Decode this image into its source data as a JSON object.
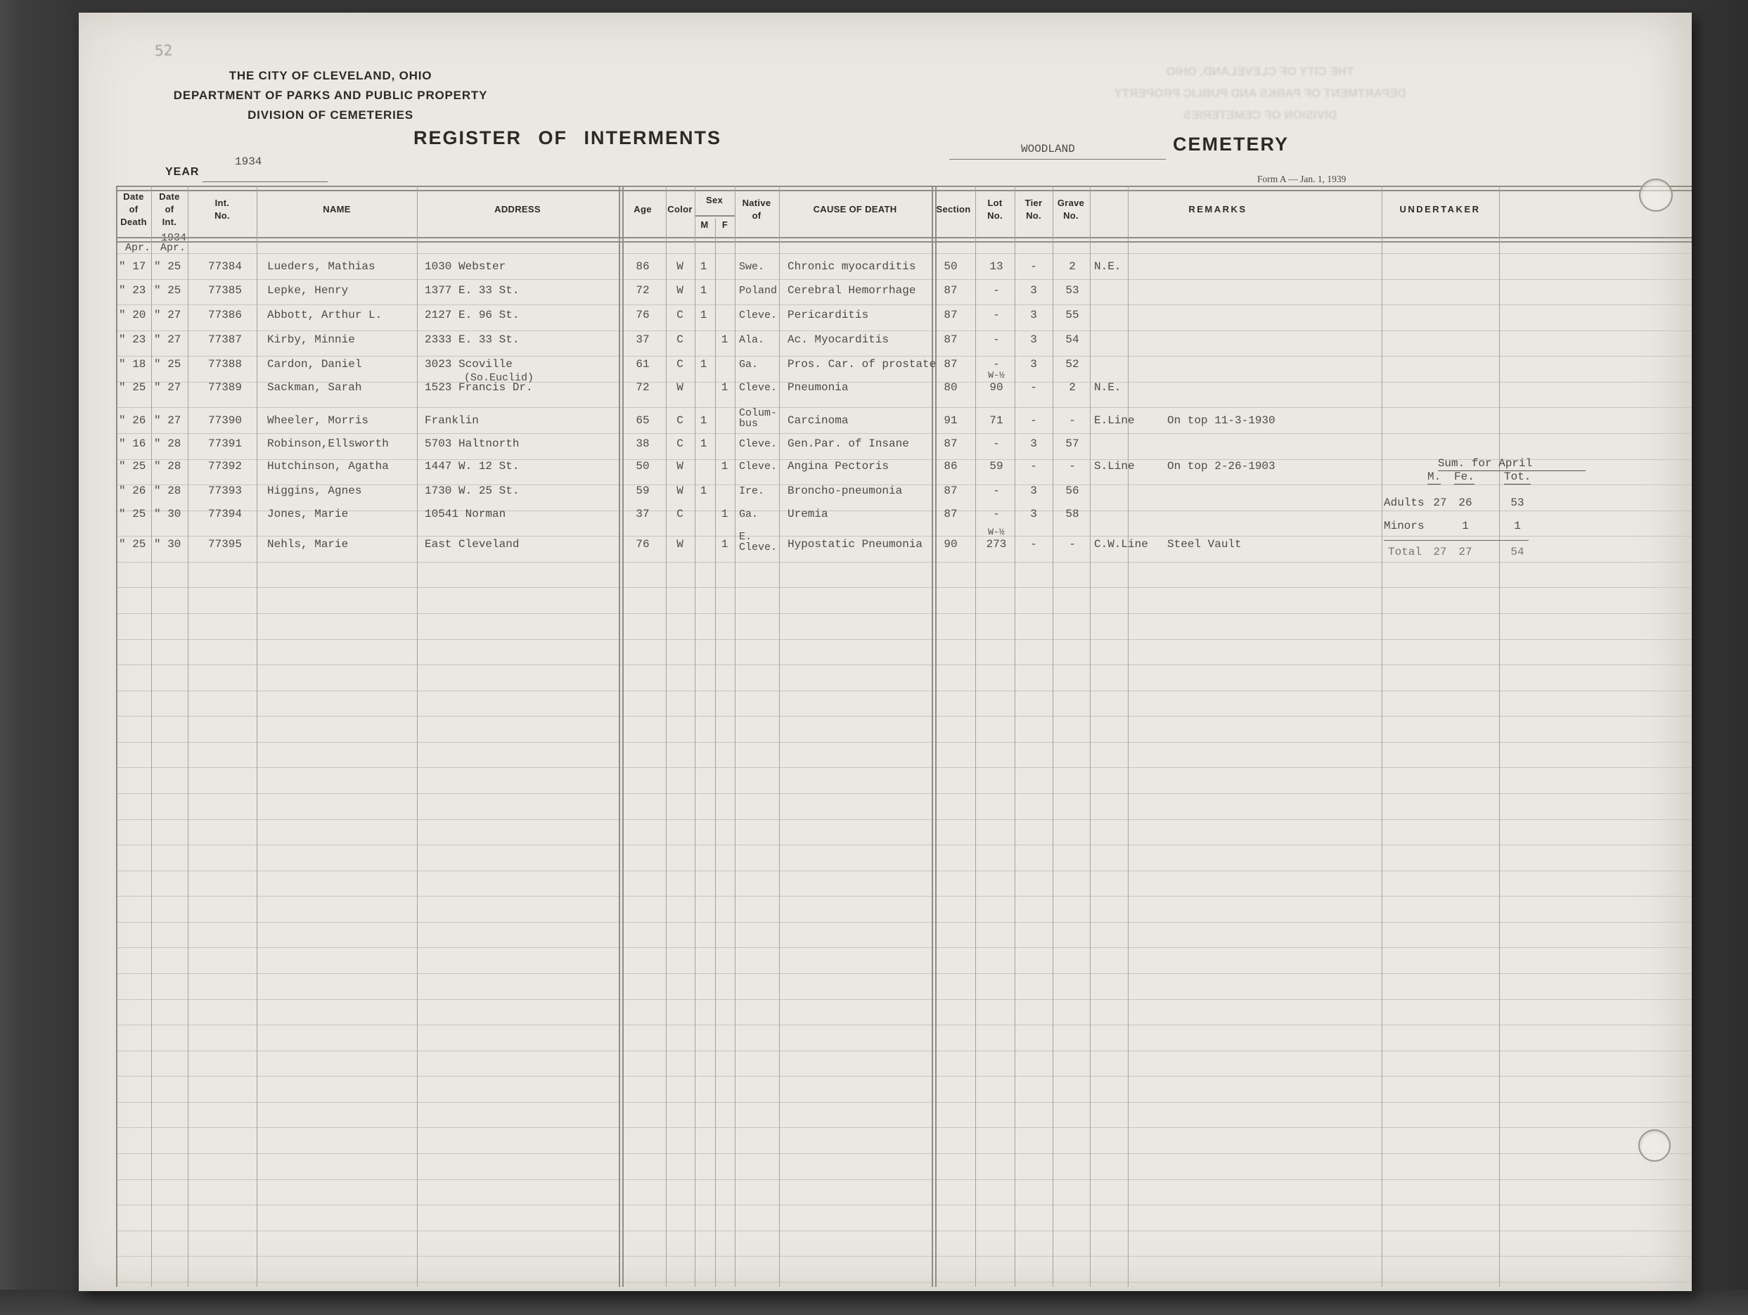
{
  "page_number": "52",
  "colors": {
    "paper": "#eae8e2",
    "background": "#363636",
    "typed_ink": "#4e4a44",
    "printed_ink": "#2c2a26"
  },
  "header": {
    "org_line1": "THE CITY OF CLEVELAND, OHIO",
    "org_line2": "DEPARTMENT OF PARKS AND PUBLIC PROPERTY",
    "org_line3": "DIVISION OF CEMETERIES",
    "title": "REGISTER OF INTERMENTS",
    "year_label": "YEAR",
    "year_value": "1934",
    "cemetery_name": "WOODLAND",
    "cemetery_label": "CEMETERY",
    "form_note": "Form A — Jan. 1, 1939"
  },
  "ghost_lines": [
    "THE CITY OF CLEVELAND, OHIO",
    "DEPARTMENT OF PARKS AND PUBLIC PROPERTY",
    "DIVISION OF CEMETERIES"
  ],
  "table": {
    "columns": [
      {
        "id": "date-of-death",
        "lines": [
          "Date",
          "of",
          "Death"
        ]
      },
      {
        "id": "date-of-int",
        "lines": [
          "Date",
          "of",
          "Int."
        ]
      },
      {
        "id": "int-no",
        "lines": [
          "Int.",
          "No."
        ]
      },
      {
        "id": "name",
        "lines": [
          "NAME"
        ]
      },
      {
        "id": "address",
        "lines": [
          "ADDRESS"
        ]
      },
      {
        "id": "age",
        "lines": [
          "Age"
        ]
      },
      {
        "id": "color",
        "lines": [
          "Color"
        ]
      },
      {
        "id": "sex",
        "lines": [
          "Sex"
        ]
      },
      {
        "id": "sex-m",
        "lines": [
          "M"
        ]
      },
      {
        "id": "sex-f",
        "lines": [
          "F"
        ]
      },
      {
        "id": "native-of",
        "lines": [
          "Native",
          "of"
        ]
      },
      {
        "id": "cause-of-death",
        "lines": [
          "CAUSE OF DEATH"
        ]
      },
      {
        "id": "section",
        "lines": [
          "Section"
        ]
      },
      {
        "id": "lot-no",
        "lines": [
          "Lot",
          "No."
        ]
      },
      {
        "id": "tier-no",
        "lines": [
          "Tier",
          "No."
        ]
      },
      {
        "id": "grave-no",
        "lines": [
          "Grave",
          "No."
        ]
      },
      {
        "id": "remarks",
        "lines": [
          "REMARKS"
        ]
      },
      {
        "id": "undertaker",
        "lines": [
          "UNDERTAKER"
        ]
      }
    ],
    "month_header": {
      "year": "1934",
      "death_month": "Apr.",
      "int_month": "Apr."
    },
    "rows": [
      {
        "date_of_death": "\" 17",
        "date_of_int": "\" 25",
        "int_no": "77384",
        "name": "Lueders, Mathias",
        "address": "1030 Webster",
        "address_note": "",
        "age": "86",
        "color": "W",
        "sex_m": "1",
        "sex_f": "",
        "native_of": [
          "Swe."
        ],
        "cause_of_death": "Chronic myocarditis",
        "section": "50",
        "lot": "13",
        "lot_note": "",
        "tier": "-",
        "grave": "2",
        "line": "N.E.",
        "remarks": ""
      },
      {
        "date_of_death": "\" 23",
        "date_of_int": "\" 25",
        "int_no": "77385",
        "name": "Lepke, Henry",
        "address": "1377 E. 33 St.",
        "address_note": "",
        "age": "72",
        "color": "W",
        "sex_m": "1",
        "sex_f": "",
        "native_of": [
          "Poland"
        ],
        "cause_of_death": "Cerebral Hemorrhage",
        "section": "87",
        "lot": "-",
        "lot_note": "",
        "tier": "3",
        "grave": "53",
        "line": "",
        "remarks": ""
      },
      {
        "date_of_death": "\" 20",
        "date_of_int": "\" 27",
        "int_no": "77386",
        "name": "Abbott, Arthur L.",
        "address": "2127 E. 96 St.",
        "address_note": "",
        "age": "76",
        "color": "C",
        "sex_m": "1",
        "sex_f": "",
        "native_of": [
          "Cleve."
        ],
        "cause_of_death": "Pericarditis",
        "section": "87",
        "lot": "-",
        "lot_note": "",
        "tier": "3",
        "grave": "55",
        "line": "",
        "remarks": ""
      },
      {
        "date_of_death": "\" 23",
        "date_of_int": "\" 27",
        "int_no": "77387",
        "name": "Kirby, Minnie",
        "address": "2333 E. 33 St.",
        "address_note": "",
        "age": "37",
        "color": "C",
        "sex_m": "",
        "sex_f": "1",
        "native_of": [
          "Ala."
        ],
        "cause_of_death": "Ac. Myocarditis",
        "section": "87",
        "lot": "-",
        "lot_note": "",
        "tier": "3",
        "grave": "54",
        "line": "",
        "remarks": ""
      },
      {
        "date_of_death": "\" 18",
        "date_of_int": "\" 25",
        "int_no": "77388",
        "name": "Cardon, Daniel",
        "address": "3023 Scoville",
        "address_note": "",
        "age": "61",
        "color": "C",
        "sex_m": "1",
        "sex_f": "",
        "native_of": [
          "Ga."
        ],
        "cause_of_death": "Pros. Car. of prostate",
        "section": "87",
        "lot": "-",
        "lot_note": "",
        "tier": "3",
        "grave": "52",
        "line": "",
        "remarks": ""
      },
      {
        "date_of_death": "\" 25",
        "date_of_int": "\" 27",
        "int_no": "77389",
        "name": "Sackman, Sarah",
        "address": "1523 Francis Dr.",
        "address_note": "(So.Euclid)",
        "age": "72",
        "color": "W",
        "sex_m": "",
        "sex_f": "1",
        "native_of": [
          "Cleve."
        ],
        "cause_of_death": "Pneumonia",
        "section": "80",
        "lot": "90",
        "lot_note": "W-½",
        "tier": "-",
        "grave": "2",
        "line": "N.E.",
        "remarks": ""
      },
      {
        "date_of_death": "\" 26",
        "date_of_int": "\" 27",
        "int_no": "77390",
        "name": "Wheeler, Morris",
        "address": "Franklin",
        "address_note": "",
        "age": "65",
        "color": "C",
        "sex_m": "1",
        "sex_f": "",
        "native_of": [
          "Colum-",
          "bus"
        ],
        "cause_of_death": "Carcinoma",
        "section": "91",
        "lot": "71",
        "lot_note": "",
        "tier": "-",
        "grave": "-",
        "line": "E.Line",
        "remarks": "On top 11-3-1930"
      },
      {
        "date_of_death": "\" 16",
        "date_of_int": "\" 28",
        "int_no": "77391",
        "name": "Robinson,Ellsworth",
        "address": "5703 Haltnorth",
        "address_note": "",
        "age": "38",
        "color": "C",
        "sex_m": "1",
        "sex_f": "",
        "native_of": [
          "Cleve."
        ],
        "cause_of_death": "Gen.Par. of Insane",
        "section": "87",
        "lot": "-",
        "lot_note": "",
        "tier": "3",
        "grave": "57",
        "line": "",
        "remarks": ""
      },
      {
        "date_of_death": "\" 25",
        "date_of_int": "\" 28",
        "int_no": "77392",
        "name": "Hutchinson, Agatha",
        "address": "1447 W. 12 St.",
        "address_note": "",
        "age": "50",
        "color": "W",
        "sex_m": "",
        "sex_f": "1",
        "native_of": [
          "Cleve."
        ],
        "cause_of_death": "Angina Pectoris",
        "section": "86",
        "lot": "59",
        "lot_note": "",
        "tier": "-",
        "grave": "-",
        "line": "S.Line",
        "remarks": "On top 2-26-1903"
      },
      {
        "date_of_death": "\" 26",
        "date_of_int": "\" 28",
        "int_no": "77393",
        "name": "Higgins, Agnes",
        "address": "1730 W. 25 St.",
        "address_note": "",
        "age": "59",
        "color": "W",
        "sex_m": "1",
        "sex_f": "",
        "native_of": [
          "Ire."
        ],
        "cause_of_death": "Broncho-pneumonia",
        "section": "87",
        "lot": "-",
        "lot_note": "",
        "tier": "3",
        "grave": "56",
        "line": "",
        "remarks": ""
      },
      {
        "date_of_death": "\" 25",
        "date_of_int": "\" 30",
        "int_no": "77394",
        "name": "Jones, Marie",
        "address": "10541 Norman",
        "address_note": "",
        "age": "37",
        "color": "C",
        "sex_m": "",
        "sex_f": "1",
        "native_of": [
          "Ga."
        ],
        "cause_of_death": "Uremia",
        "section": "87",
        "lot": "-",
        "lot_note": "",
        "tier": "3",
        "grave": "58",
        "line": "",
        "remarks": ""
      },
      {
        "date_of_death": "\" 25",
        "date_of_int": "\" 30",
        "int_no": "77395",
        "name": "Nehls, Marie",
        "address": "East Cleveland",
        "address_note": "",
        "age": "76",
        "color": "W",
        "sex_m": "",
        "sex_f": "1",
        "native_of": [
          "E.",
          "Cleve."
        ],
        "cause_of_death": "Hypostatic Pneumonia",
        "section": "90",
        "lot": "273",
        "lot_note": "W-½",
        "tier": "-",
        "grave": "-",
        "line": "C.W.Line",
        "remarks": "Steel Vault"
      }
    ]
  },
  "summary": {
    "title": "Sum. for April",
    "col_m": "M.",
    "col_fe": "Fe.",
    "col_tot": "Tot.",
    "rows": [
      {
        "label": "Adults",
        "m": "27",
        "fe": "26",
        "tot": "53"
      },
      {
        "label": "Minors",
        "m": "",
        "fe": "1",
        "tot": "1"
      },
      {
        "label": "Total",
        "m": "27",
        "fe": "27",
        "tot": "54"
      }
    ]
  }
}
